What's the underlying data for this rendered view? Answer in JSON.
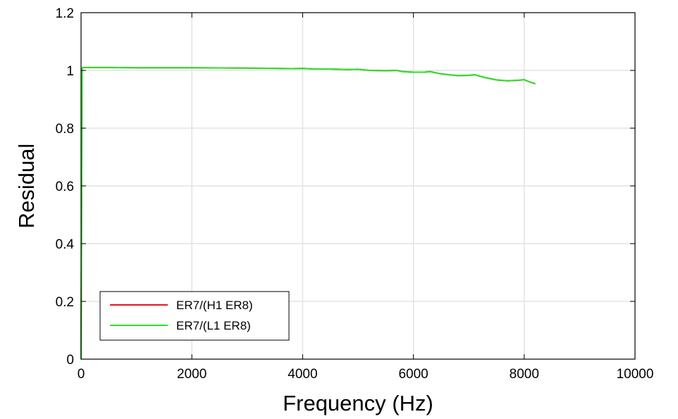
{
  "chart_data": {
    "type": "line",
    "title": "",
    "xlabel": "Frequency (Hz)",
    "ylabel": "Residual",
    "xlim": [
      0,
      10000
    ],
    "ylim": [
      0,
      1.2
    ],
    "x_ticks": [
      "0",
      "2000",
      "4000",
      "6000",
      "8000",
      "10000"
    ],
    "y_ticks": [
      "0",
      "0.2",
      "0.4",
      "0.6",
      "0.8",
      "1",
      "1.2"
    ],
    "grid": true,
    "legend_position": "bottom-left",
    "series": [
      {
        "name": "ER7/(H1 ER8)",
        "color": "#e8141c",
        "x": [
          0,
          20,
          40,
          500,
          1000,
          2000,
          3000,
          3500,
          3800,
          4000,
          4200,
          4500,
          4800,
          5000,
          5200,
          5500,
          5700,
          5800,
          6000,
          6200,
          6300,
          6500,
          6800,
          7000,
          7100,
          7300,
          7500,
          7700,
          7900,
          8000,
          8100,
          8200
        ],
        "y": [
          0,
          1.008,
          1.01,
          1.01,
          1.009,
          1.009,
          1.008,
          1.007,
          1.006,
          1.007,
          1.005,
          1.005,
          1.003,
          1.004,
          1.0,
          0.999,
          1.0,
          0.996,
          0.994,
          0.994,
          0.996,
          0.988,
          0.982,
          0.983,
          0.985,
          0.975,
          0.967,
          0.964,
          0.966,
          0.968,
          0.96,
          0.954
        ]
      },
      {
        "name": "ER7/(L1 ER8)",
        "color": "#27e327",
        "x": [
          0,
          20,
          40,
          500,
          1000,
          2000,
          3000,
          3500,
          3800,
          4000,
          4200,
          4500,
          4800,
          5000,
          5200,
          5500,
          5700,
          5800,
          6000,
          6200,
          6300,
          6500,
          6800,
          7000,
          7100,
          7300,
          7500,
          7700,
          7900,
          8000,
          8100,
          8200
        ],
        "y": [
          0,
          1.008,
          1.01,
          1.01,
          1.009,
          1.009,
          1.008,
          1.007,
          1.006,
          1.007,
          1.005,
          1.005,
          1.003,
          1.004,
          1.0,
          0.999,
          1.0,
          0.996,
          0.994,
          0.994,
          0.996,
          0.988,
          0.982,
          0.983,
          0.985,
          0.975,
          0.967,
          0.964,
          0.966,
          0.968,
          0.96,
          0.954
        ]
      }
    ]
  }
}
